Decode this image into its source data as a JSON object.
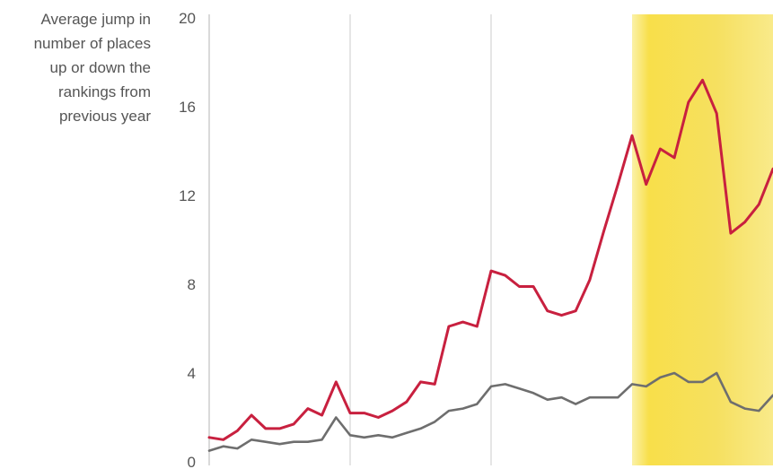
{
  "chart_data": {
    "type": "line",
    "title": "",
    "xlabel": "",
    "ylabel_lines": [
      "Average jump in",
      "number of places",
      "up or down the",
      "rankings from",
      "previous year"
    ],
    "ylim": [
      0,
      20
    ],
    "y_ticks": [
      "0",
      "4",
      "8",
      "12",
      "16",
      "20"
    ],
    "grid": "vertical lines only",
    "series": [
      {
        "color": "#c8203f",
        "values": [
          1.1,
          1.0,
          1.4,
          2.1,
          1.5,
          1.5,
          1.7,
          2.4,
          2.1,
          3.6,
          2.2,
          2.2,
          2.0,
          2.3,
          2.7,
          3.6,
          3.5,
          6.1,
          6.3,
          6.1,
          8.6,
          8.4,
          7.9,
          7.9,
          6.8,
          6.6,
          6.8,
          8.2,
          10.4,
          12.5,
          14.7,
          12.5,
          14.1,
          13.7,
          16.2,
          17.2,
          15.7,
          10.3,
          10.8,
          11.6,
          13.2
        ]
      },
      {
        "color": "#6e6e6e",
        "values": [
          0.5,
          0.7,
          0.6,
          1.0,
          0.9,
          0.8,
          0.9,
          0.9,
          1.0,
          2.0,
          1.2,
          1.1,
          1.2,
          1.1,
          1.3,
          1.5,
          1.8,
          2.3,
          2.4,
          2.6,
          3.4,
          3.5,
          3.3,
          3.1,
          2.8,
          2.9,
          2.6,
          2.9,
          2.9,
          2.9,
          3.5,
          3.4,
          3.8,
          4.0,
          3.6,
          3.6,
          4.0,
          2.7,
          2.4,
          2.3,
          3.0
        ]
      }
    ],
    "vertical_gridlines_at_index": [
      10,
      20
    ],
    "highlight_band_from_index": 30,
    "highlight_color": "#f7dc3a"
  }
}
